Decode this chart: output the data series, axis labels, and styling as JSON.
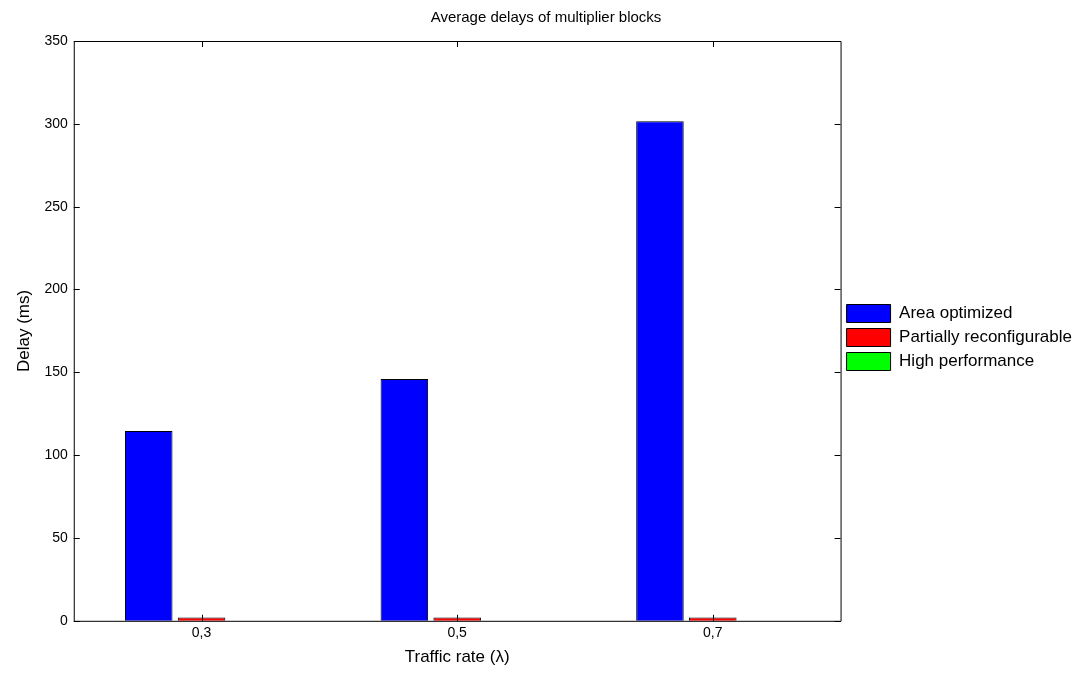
{
  "chart_data": {
    "type": "bar",
    "title": "Average delays of multiplier blocks",
    "xlabel": "Traffic rate (λ)",
    "ylabel": "Delay (ms)",
    "categories": [
      "0,3",
      "0,5",
      "0,7"
    ],
    "series": [
      {
        "name": "Area optimized",
        "color": "#0000ff",
        "values": [
          114.5,
          146,
          301.5
        ]
      },
      {
        "name": "Partially reconfigurable",
        "color": "#ff0000",
        "values": [
          2,
          2,
          2
        ]
      },
      {
        "name": "High performance",
        "color": "#00ff00",
        "values": [
          0,
          0,
          0
        ]
      }
    ],
    "ylim": [
      0,
      350
    ],
    "yticks": [
      0,
      50,
      100,
      150,
      200,
      250,
      300,
      350
    ],
    "grid": false,
    "legend": "right"
  }
}
